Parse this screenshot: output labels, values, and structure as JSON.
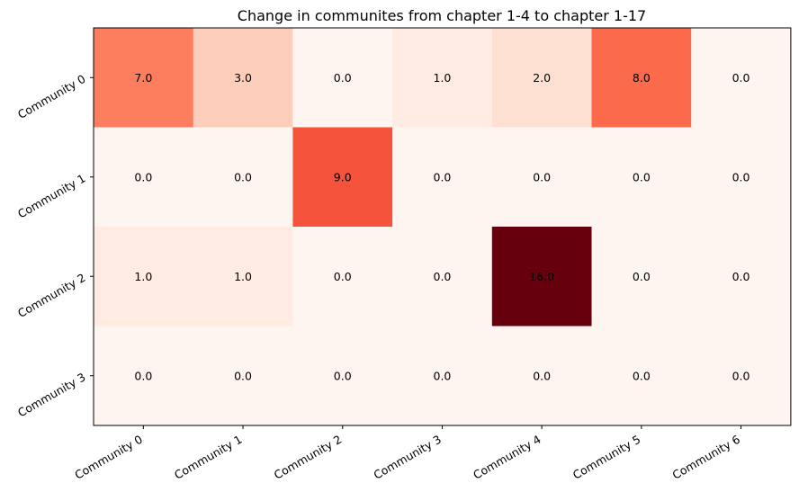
{
  "chart_data": {
    "type": "heatmap",
    "title": "Change in communites from chapter 1-4 to chapter 1-17",
    "xlabel": "",
    "ylabel": "",
    "x_categories": [
      "Community 0",
      "Community 1",
      "Community 2",
      "Community 3",
      "Community 4",
      "Community 5",
      "Community 6"
    ],
    "y_categories": [
      "Community 0",
      "Community 1",
      "Community 2",
      "Community 3"
    ],
    "values": [
      [
        7.0,
        3.0,
        0.0,
        1.0,
        2.0,
        8.0,
        0.0
      ],
      [
        0.0,
        0.0,
        9.0,
        0.0,
        0.0,
        0.0,
        0.0
      ],
      [
        1.0,
        1.0,
        0.0,
        0.0,
        16.0,
        0.0,
        0.0
      ],
      [
        0.0,
        0.0,
        0.0,
        0.0,
        0.0,
        0.0,
        0.0
      ]
    ],
    "value_range": [
      0,
      16
    ],
    "colormap": "Reds",
    "cell_label_color": "#000000",
    "grid": false,
    "legend": false
  }
}
